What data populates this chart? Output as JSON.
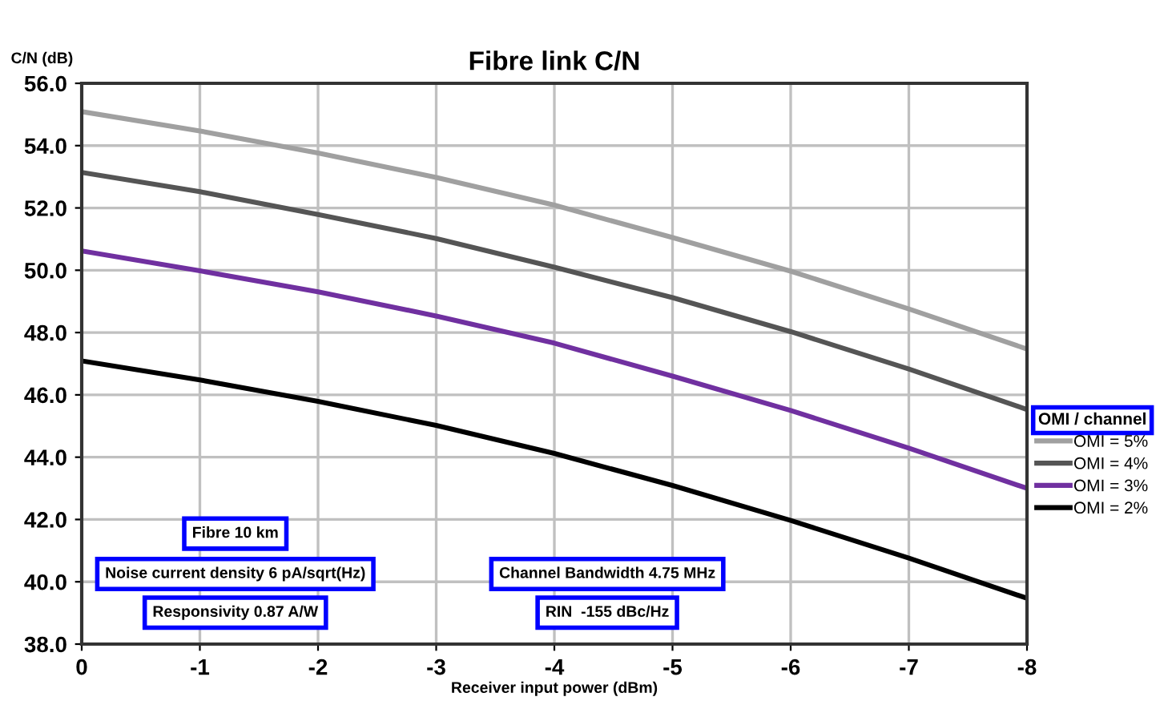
{
  "chart_data": {
    "type": "line",
    "title": "Fibre link C/N",
    "xlabel": "Receiver input power (dBm)",
    "ylabel": "C/N (dB)",
    "legend_title": "OMI / channel",
    "x": [
      0,
      -1,
      -2,
      -3,
      -4,
      -5,
      -6,
      -7,
      -8
    ],
    "series": [
      {
        "name": "OMI = 5%",
        "color": "#a0a0a0",
        "values": [
          55.09,
          54.47,
          53.76,
          52.98,
          52.09,
          51.05,
          49.97,
          48.76,
          47.47
        ]
      },
      {
        "name": "OMI = 4%",
        "color": "#555555",
        "values": [
          53.14,
          52.52,
          51.79,
          51.02,
          50.1,
          49.12,
          48.03,
          46.83,
          45.53
        ]
      },
      {
        "name": "OMI = 3%",
        "color": "#7030a0",
        "values": [
          50.62,
          49.98,
          49.31,
          48.53,
          47.66,
          46.6,
          45.5,
          44.29,
          43.0
        ]
      },
      {
        "name": "OMI = 2%",
        "color": "#000000",
        "values": [
          47.09,
          46.48,
          45.79,
          45.02,
          44.12,
          43.09,
          41.97,
          40.76,
          39.47
        ]
      }
    ],
    "xlim": [
      0,
      -8
    ],
    "xticks": [
      {
        "value": 0,
        "label": "0"
      },
      {
        "value": -1,
        "label": "-1"
      },
      {
        "value": -2,
        "label": "-2"
      },
      {
        "value": -3,
        "label": "-3"
      },
      {
        "value": -4,
        "label": "-4"
      },
      {
        "value": -5,
        "label": "-5"
      },
      {
        "value": -6,
        "label": "-6"
      },
      {
        "value": -7,
        "label": "-7"
      },
      {
        "value": -8,
        "label": "-8"
      }
    ],
    "ylim": [
      38,
      56
    ],
    "yticks": [
      {
        "value": 38,
        "label": "38.0"
      },
      {
        "value": 40,
        "label": "40.0"
      },
      {
        "value": 42,
        "label": "42.0"
      },
      {
        "value": 44,
        "label": "44.0"
      },
      {
        "value": 46,
        "label": "46.0"
      },
      {
        "value": 48,
        "label": "48.0"
      },
      {
        "value": 50,
        "label": "50.0"
      },
      {
        "value": 52,
        "label": "52.0"
      },
      {
        "value": 54,
        "label": "54.0"
      },
      {
        "value": 56,
        "label": "56.0"
      }
    ],
    "grid": true,
    "legend": "right",
    "marker": "none",
    "line_style": "solid",
    "annotations": [
      "Fibre 10 km",
      "Noise current density 6 pA/sqrt(Hz)",
      "Responsivity 0.87 A/W",
      "Channel Bandwidth 4.75 MHz",
      "RIN  -155 dBc/Hz"
    ]
  }
}
